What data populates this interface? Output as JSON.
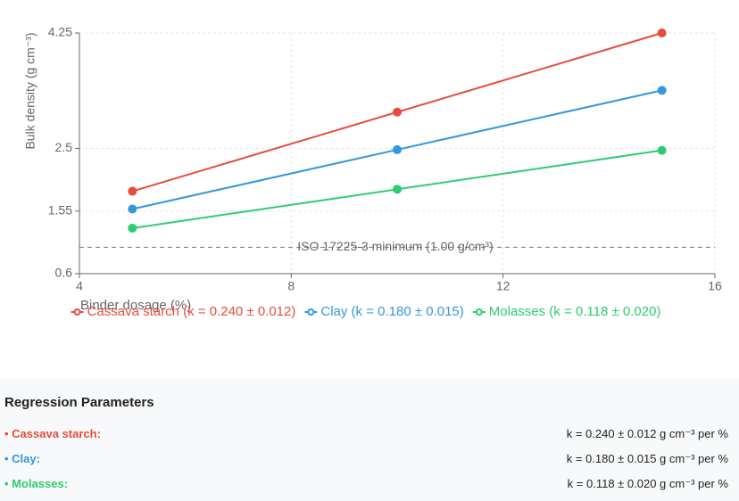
{
  "chart_data": {
    "type": "line",
    "x_label": "Binder dosage (%)",
    "y_label": "Bulk density (g cm⁻³)",
    "x": [
      5,
      10,
      15
    ],
    "series": [
      {
        "name": "Cassava starch (k = 0.240 ± 0.012)",
        "color": "#e74c3c",
        "values": [
          1.85,
          3.05,
          4.25
        ]
      },
      {
        "name": "Clay (k = 0.180 ± 0.015)",
        "color": "#3498db",
        "values": [
          1.58,
          2.48,
          3.38
        ]
      },
      {
        "name": "Molasses (k = 0.118 ± 0.020)",
        "color": "#2ecc71",
        "values": [
          1.29,
          1.88,
          2.47
        ]
      }
    ],
    "xlim": [
      4,
      16
    ],
    "xticks": [
      4,
      8,
      12,
      16
    ],
    "ylim": [
      0.6,
      4.25
    ],
    "yticks": [
      0.6,
      1.55,
      2.5,
      4.25
    ],
    "grid": true,
    "reference_line": {
      "value": 1.0,
      "label": "ISO 17225-3 minimum (1.00 g/cm³)"
    }
  },
  "regression": {
    "title": "Regression Parameters",
    "rows": [
      {
        "name": "Cassava starch:",
        "value": "k = 0.240 ± 0.012 g cm⁻³ per %"
      },
      {
        "name": "Clay:",
        "value": "k = 0.180 ± 0.015 g cm⁻³ per %"
      },
      {
        "name": "Molasses:",
        "value": "k = 0.118 ± 0.020 g cm⁻³ per %"
      }
    ]
  }
}
